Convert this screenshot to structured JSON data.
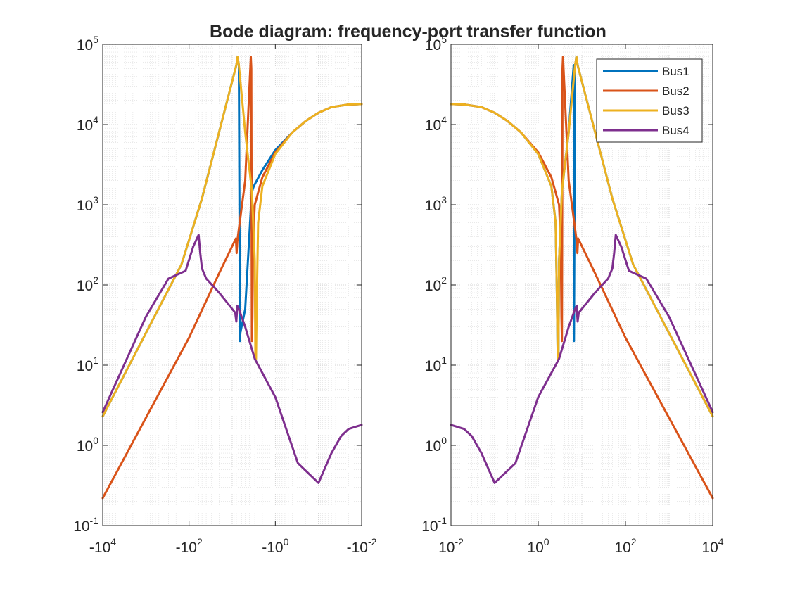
{
  "figure": {
    "title": "Bode diagram: frequency-port transfer function"
  },
  "chart_data": [
    {
      "type": "line",
      "panel": "negative-frequency",
      "xscale": "log",
      "x_axis_reversed_negative": true,
      "yscale": "log",
      "xlim": [
        -10000,
        -0.01
      ],
      "ylim": [
        0.1,
        100000
      ],
      "grid": true,
      "minor_grid": true,
      "xticks": [
        {
          "base": "-10",
          "exp": "4"
        },
        {
          "base": "-10",
          "exp": "2"
        },
        {
          "base": "-10",
          "exp": "0"
        },
        {
          "base": "-10",
          "exp": "-2"
        }
      ],
      "yticks": [
        {
          "base": "10",
          "exp": "-1"
        },
        {
          "base": "10",
          "exp": "0"
        },
        {
          "base": "10",
          "exp": "1"
        },
        {
          "base": "10",
          "exp": "2"
        },
        {
          "base": "10",
          "exp": "3"
        },
        {
          "base": "10",
          "exp": "4"
        },
        {
          "base": "10",
          "exp": "5"
        }
      ],
      "series": [
        {
          "name": "Bus1",
          "color": "#0072BD",
          "x": [
            -10000,
            -1000,
            -150,
            -50,
            -8,
            -7.5,
            -7,
            -6.6,
            -6.5,
            -5,
            -3.5,
            -3.4,
            -3.3,
            -3,
            -2,
            -1,
            -0.4,
            -0.2,
            -0.1,
            -0.05,
            -0.02,
            -0.01
          ],
          "y": [
            2.3,
            25,
            180,
            1200,
            55000,
            70000,
            55000,
            20,
            25,
            50,
            1500,
            1500,
            1600,
            1800,
            2700,
            4800,
            8000,
            11000,
            14000,
            16500,
            17800,
            18000
          ]
        },
        {
          "name": "Bus2",
          "color": "#D95319",
          "x": [
            -10000,
            -1000,
            -100,
            -20,
            -8.2,
            -7.9,
            -7.6,
            -7,
            -5,
            -3.7,
            -3.6,
            -3.5,
            -3.4,
            -3.3,
            -3,
            -2,
            -1,
            -0.4,
            -0.2,
            -0.1,
            -0.05,
            -0.02,
            -0.01
          ],
          "y": [
            0.22,
            2.2,
            22,
            140,
            380,
            250,
            350,
            500,
            2000,
            70000,
            50000,
            20,
            40,
            300,
            1000,
            2200,
            4500,
            8000,
            11000,
            14000,
            16500,
            17800,
            18000
          ]
        },
        {
          "name": "Bus3",
          "color": "#EDB120",
          "x": [
            -10000,
            -1000,
            -150,
            -50,
            -8,
            -7.5,
            -7,
            -5,
            -3.5,
            -3,
            -2.9,
            -2.8,
            -2.7,
            -2.5,
            -2,
            -1,
            -0.4,
            -0.2,
            -0.1,
            -0.05,
            -0.02,
            -0.01
          ],
          "y": [
            2.3,
            25,
            180,
            1200,
            55000,
            70000,
            55000,
            8000,
            1500,
            200,
            12,
            12,
            60,
            600,
            1700,
            4300,
            8000,
            11000,
            14000,
            16500,
            17800,
            18000
          ]
        },
        {
          "name": "Bus4",
          "color": "#7E2F8E",
          "x": [
            -10000,
            -1000,
            -300,
            -120,
            -80,
            -60,
            -55,
            -50,
            -40,
            -20,
            -8.5,
            -8,
            -7.6,
            -7,
            -5,
            -3,
            -1,
            -0.3,
            -0.1,
            -0.05,
            -0.03,
            -0.02,
            -0.01
          ],
          "y": [
            2.6,
            40,
            120,
            150,
            300,
            420,
            250,
            160,
            120,
            80,
            45,
            35,
            55,
            50,
            30,
            12,
            4,
            0.6,
            0.34,
            0.8,
            1.3,
            1.6,
            1.8
          ]
        }
      ]
    },
    {
      "type": "line",
      "panel": "positive-frequency",
      "xscale": "log",
      "yscale": "log",
      "xlim": [
        0.01,
        10000
      ],
      "ylim": [
        0.1,
        100000
      ],
      "grid": true,
      "minor_grid": true,
      "legend": {
        "entries": [
          "Bus1",
          "Bus2",
          "Bus3",
          "Bus4"
        ],
        "location": "top-right"
      },
      "xticks": [
        {
          "base": "10",
          "exp": "-2"
        },
        {
          "base": "10",
          "exp": "0"
        },
        {
          "base": "10",
          "exp": "2"
        },
        {
          "base": "10",
          "exp": "4"
        }
      ],
      "yticks": [
        {
          "base": "10",
          "exp": "-1"
        },
        {
          "base": "10",
          "exp": "0"
        },
        {
          "base": "10",
          "exp": "1"
        },
        {
          "base": "10",
          "exp": "2"
        },
        {
          "base": "10",
          "exp": "3"
        },
        {
          "base": "10",
          "exp": "4"
        },
        {
          "base": "10",
          "exp": "5"
        }
      ],
      "series": [
        {
          "name": "Bus1",
          "color": "#0072BD",
          "x": [
            0.01,
            0.02,
            0.05,
            0.1,
            0.2,
            0.4,
            1,
            2,
            2.5,
            2.7,
            2.8,
            2.9,
            3,
            3.5,
            5,
            6.5,
            6.6,
            7,
            7.5,
            8,
            50,
            150,
            1000,
            10000
          ],
          "y": [
            18000,
            17800,
            16500,
            14000,
            11000,
            8000,
            4300,
            1700,
            600,
            60,
            12,
            12,
            200,
            1500,
            8000,
            55000,
            20,
            55000,
            70000,
            55000,
            1200,
            180,
            25,
            2.3
          ]
        },
        {
          "name": "Bus2",
          "color": "#D95319",
          "x": [
            0.01,
            0.02,
            0.05,
            0.1,
            0.2,
            0.4,
            1,
            2,
            3,
            3.3,
            3.4,
            3.5,
            3.6,
            3.7,
            5,
            7,
            7.6,
            7.9,
            8.2,
            20,
            100,
            1000,
            10000
          ],
          "y": [
            18000,
            17800,
            16500,
            14000,
            11000,
            8000,
            4500,
            2200,
            1000,
            300,
            40,
            20,
            50000,
            70000,
            2000,
            500,
            350,
            250,
            380,
            140,
            22,
            2.2,
            0.22
          ]
        },
        {
          "name": "Bus3",
          "color": "#EDB120",
          "x": [
            0.01,
            0.02,
            0.05,
            0.1,
            0.2,
            0.4,
            1,
            2,
            2.5,
            2.7,
            2.8,
            2.9,
            3,
            3.5,
            5,
            7,
            7.5,
            8,
            50,
            150,
            1000,
            10000
          ],
          "y": [
            18000,
            17800,
            16500,
            14000,
            11000,
            8000,
            4300,
            1700,
            600,
            60,
            12,
            12,
            200,
            1500,
            8000,
            55000,
            70000,
            55000,
            1200,
            180,
            25,
            2.3
          ]
        },
        {
          "name": "Bus4",
          "color": "#7E2F8E",
          "x": [
            0.01,
            0.02,
            0.03,
            0.05,
            0.1,
            0.3,
            1,
            3,
            5,
            7,
            7.6,
            8,
            8.5,
            20,
            40,
            50,
            55,
            60,
            80,
            120,
            300,
            1000,
            10000
          ],
          "y": [
            1.8,
            1.6,
            1.3,
            0.8,
            0.34,
            0.6,
            4,
            12,
            30,
            50,
            55,
            35,
            45,
            80,
            120,
            160,
            250,
            420,
            300,
            150,
            120,
            40,
            2.6
          ]
        }
      ]
    }
  ]
}
